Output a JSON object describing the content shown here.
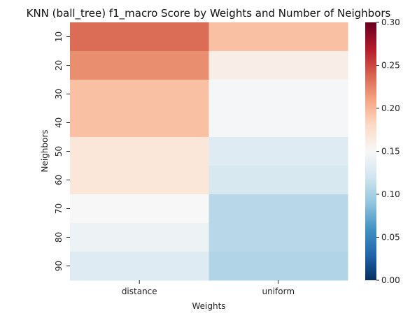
{
  "chart_data": {
    "type": "heatmap",
    "title": "KNN (ball_tree) f1_macro Score by Weights and Number of Neighbors",
    "xlabel": "Weights",
    "ylabel": "Neighbors",
    "x_categories": [
      "distance",
      "uniform"
    ],
    "y_categories": [
      "10",
      "20",
      "30",
      "40",
      "50",
      "60",
      "70",
      "80",
      "90"
    ],
    "values": [
      [
        0.235,
        0.195
      ],
      [
        0.22,
        0.16
      ],
      [
        0.195,
        0.148
      ],
      [
        0.195,
        0.148
      ],
      [
        0.168,
        0.13
      ],
      [
        0.168,
        0.125
      ],
      [
        0.15,
        0.108
      ],
      [
        0.142,
        0.108
      ],
      [
        0.13,
        0.105
      ]
    ],
    "colormap": "RdBu_r",
    "vmin": 0.0,
    "vmax": 0.3,
    "colorbar_ticks": [
      "0.00",
      "0.05",
      "0.10",
      "0.15",
      "0.20",
      "0.25",
      "0.30"
    ]
  }
}
